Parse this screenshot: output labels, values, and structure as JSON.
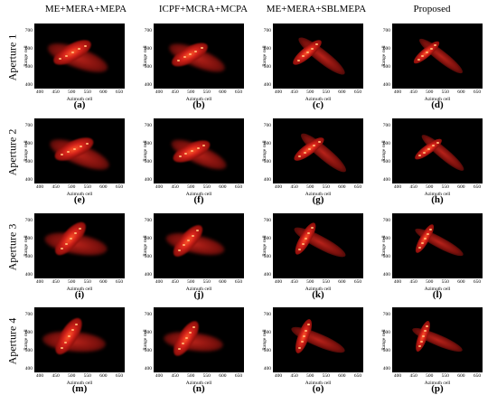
{
  "columns": [
    "ME+MERA+MEPA",
    "ICPF+MCRA+MCPA",
    "ME+MERA+SBLMEPA",
    "Proposed"
  ],
  "rows": [
    "Aperture 1",
    "Aperture 2",
    "Aperture 3",
    "Aperture 4"
  ],
  "axes": {
    "xlabel": "Azimuth cell",
    "ylabel": "Range cell",
    "xticks": [
      "400",
      "450",
      "500",
      "550",
      "600",
      "650"
    ],
    "yticks": [
      "700",
      "600",
      "500",
      "400"
    ]
  },
  "captions": [
    [
      "(a)",
      "(b)",
      "(c)",
      "(d)"
    ],
    [
      "(e)",
      "(f)",
      "(g)",
      "(h)"
    ],
    [
      "(i)",
      "(j)",
      "(k)",
      "(l)"
    ],
    [
      "(m)",
      "(n)",
      "(o)",
      "(p)"
    ]
  ],
  "colors": {
    "background": "#000000",
    "target": "#d4221a",
    "highlight": "#ffb070"
  }
}
